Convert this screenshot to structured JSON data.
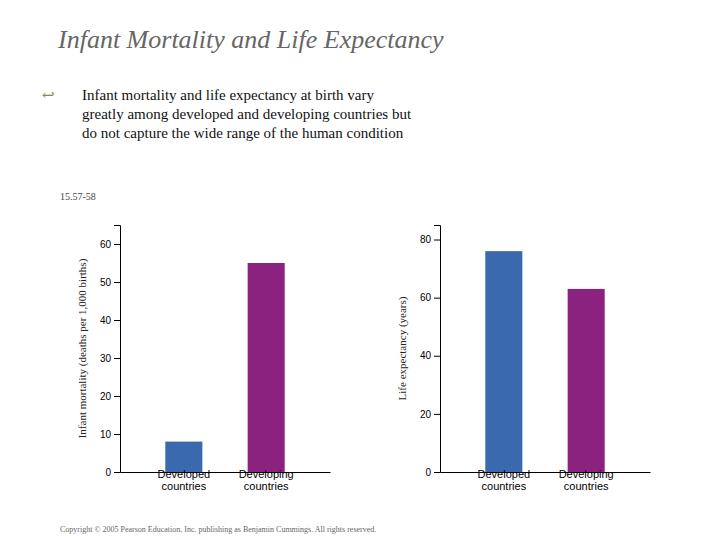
{
  "title": "Infant Mortality and Life Expectancy",
  "subtitle": "Infant mortality and life expectancy at birth vary\ngreatly among developed and developing countries but\ndo not capture the wide range of the human condition",
  "annotations": [
    "↩",
    "15.57-58",
    "Copyright © 2005 Pearson Education, Inc. publishing as Benjamin Cummings. All rights reserved."
  ],
  "chart_data": [
    {
      "type": "bar",
      "categories": [
        "Developed\ncountries",
        "Developing\ncountries"
      ],
      "values": [
        8,
        55
      ],
      "colors": [
        "#3a6aad",
        "#8b2280"
      ],
      "ylabel": "Infant mortality (deaths per 1,000 births)",
      "ylim": [
        0,
        65
      ],
      "yticks": [
        0,
        10,
        20,
        30,
        40,
        50,
        60
      ]
    },
    {
      "type": "bar",
      "categories": [
        "Developed\ncountries",
        "Developing\ncountries"
      ],
      "values": [
        76,
        63
      ],
      "colors": [
        "#3a6aad",
        "#8b2280"
      ],
      "ylabel": "Life expectancy (years)",
      "ylim": [
        0,
        85
      ],
      "yticks": [
        0,
        20,
        40,
        60,
        80
      ]
    }
  ]
}
